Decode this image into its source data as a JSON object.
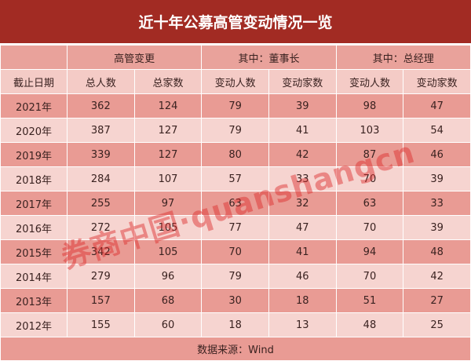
{
  "title": "近十年公募高管变动情况一览",
  "group_headers": [
    "高管变更",
    "其中：董事长",
    "其中：总经理"
  ],
  "sub_headers": [
    "截止日期",
    "总人数",
    "总家数",
    "变动人数",
    "变动家数",
    "变动人数",
    "变动家数"
  ],
  "rows": [
    [
      "2021年",
      "362",
      "124",
      "79",
      "39",
      "98",
      "47"
    ],
    [
      "2020年",
      "387",
      "127",
      "79",
      "41",
      "103",
      "54"
    ],
    [
      "2019年",
      "339",
      "127",
      "80",
      "42",
      "87",
      "46"
    ],
    [
      "2018年",
      "284",
      "107",
      "57",
      "33",
      "70",
      "39"
    ],
    [
      "2017年",
      "255",
      "97",
      "63",
      "32",
      "63",
      "33"
    ],
    [
      "2016年",
      "272",
      "105",
      "77",
      "47",
      "70",
      "39"
    ],
    [
      "2015年",
      "342",
      "105",
      "70",
      "41",
      "94",
      "48"
    ],
    [
      "2014年",
      "279",
      "96",
      "79",
      "46",
      "70",
      "42"
    ],
    [
      "2013年",
      "157",
      "68",
      "30",
      "18",
      "51",
      "27"
    ],
    [
      "2012年",
      "155",
      "60",
      "18",
      "13",
      "48",
      "25"
    ]
  ],
  "footer": "数据来源：Wind",
  "watermark": "券商中国·quanshangcn",
  "colors": {
    "title_bg": "#a22b23",
    "row_dark": "#e99b94",
    "row_light": "#f6d4d0"
  },
  "chart_data": {
    "type": "table",
    "title": "近十年公募高管变动情况一览",
    "columns": [
      "截止日期",
      "高管变更 总人数",
      "高管变更 总家数",
      "董事长 变动人数",
      "董事长 变动家数",
      "总经理 变动人数",
      "总经理 变动家数"
    ]
  }
}
